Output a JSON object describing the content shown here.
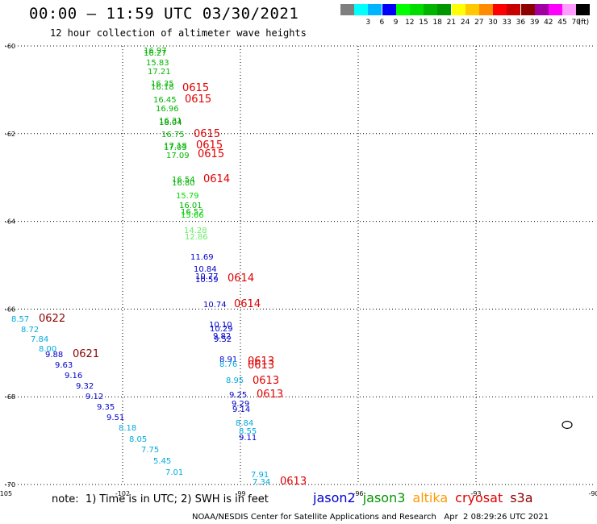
{
  "title": "00:00 – 11:59 UTC 03/30/2021",
  "subtitle": "12 hour collection of altimeter wave heights",
  "scale": {
    "unit": "(ft)",
    "bins": [
      {
        "label": "",
        "color": "#7f7f7f"
      },
      {
        "label": "3",
        "color": "#00ffff"
      },
      {
        "label": "6",
        "color": "#00b4ff"
      },
      {
        "label": "9",
        "color": "#0000ff"
      },
      {
        "label": "12",
        "color": "#00ff00"
      },
      {
        "label": "15",
        "color": "#00dc00"
      },
      {
        "label": "18",
        "color": "#00b400"
      },
      {
        "label": "21",
        "color": "#009600"
      },
      {
        "label": "24",
        "color": "#ffff00"
      },
      {
        "label": "27",
        "color": "#ffc800"
      },
      {
        "label": "30",
        "color": "#ff8c00"
      },
      {
        "label": "33",
        "color": "#ff0000"
      },
      {
        "label": "36",
        "color": "#c80000"
      },
      {
        "label": "39",
        "color": "#8c0000"
      },
      {
        "label": "42",
        "color": "#a000a0"
      },
      {
        "label": "45",
        "color": "#ff00ff"
      },
      {
        "label": "70",
        "color": "#ff9cff"
      },
      {
        "label": "",
        "color": "#000000"
      }
    ]
  },
  "axes": {
    "lat_labels": [
      "-60",
      "-62",
      "-64",
      "-66",
      "-68",
      "-70"
    ],
    "lon_labels": [
      "-105",
      "-102",
      "-99",
      "-96",
      "-93",
      "-90"
    ],
    "lat_values": [
      -60,
      -62,
      -64,
      -66,
      -68,
      -70
    ],
    "lon_values": [
      -105,
      -102,
      -99,
      -96,
      -93,
      -90
    ]
  },
  "swh_values": [
    {
      "text": "16.97",
      "color": "#00b400"
    },
    {
      "text": "16.27",
      "color": "#00b400"
    },
    {
      "text": "15.83",
      "color": "#00b400"
    },
    {
      "text": "17.21",
      "color": "#00b400"
    },
    {
      "text": "16.35",
      "color": "#00b400"
    },
    {
      "text": "16.18",
      "color": "#00b400"
    },
    {
      "text": "16.45",
      "color": "#00b400"
    },
    {
      "text": "16.96",
      "color": "#00b400"
    },
    {
      "text": "16.31",
      "color": "#00b400"
    },
    {
      "text": "18.04",
      "color": "#009600"
    },
    {
      "text": "16.75",
      "color": "#00b400"
    },
    {
      "text": "17.18",
      "color": "#00b400"
    },
    {
      "text": "17.03",
      "color": "#00b400"
    },
    {
      "text": "17.09",
      "color": "#00b400"
    },
    {
      "text": "16.54",
      "color": "#00b400"
    },
    {
      "text": "16.80",
      "color": "#00b400"
    },
    {
      "text": "15.79",
      "color": "#00dc00"
    },
    {
      "text": "16.01",
      "color": "#00b400"
    },
    {
      "text": "16.52",
      "color": "#00b400"
    },
    {
      "text": "15.66",
      "color": "#00dc00"
    },
    {
      "text": "14.28",
      "color": "#66ee66"
    },
    {
      "text": "12.86",
      "color": "#66ee66"
    },
    {
      "text": "11.69",
      "color": "#0000cc"
    },
    {
      "text": "10.84",
      "color": "#0000cc"
    },
    {
      "text": "10.77",
      "color": "#0000cc"
    },
    {
      "text": "10.59",
      "color": "#0000cc"
    },
    {
      "text": "10.74",
      "color": "#0000cc"
    },
    {
      "text": "10.10",
      "color": "#0000cc"
    },
    {
      "text": "10.29",
      "color": "#0000cc"
    },
    {
      "text": "9.82",
      "color": "#0000cc"
    },
    {
      "text": "9.52",
      "color": "#0000cc"
    },
    {
      "text": "8.91",
      "color": "#0000cc"
    },
    {
      "text": "8.76",
      "color": "#00aadd"
    },
    {
      "text": "8.95",
      "color": "#00aadd"
    },
    {
      "text": "9.25",
      "color": "#0000cc"
    },
    {
      "text": "9.29",
      "color": "#0000cc"
    },
    {
      "text": "9.14",
      "color": "#0000cc"
    },
    {
      "text": "8.84",
      "color": "#00aadd"
    },
    {
      "text": "8.55",
      "color": "#00aadd"
    },
    {
      "text": "9.11",
      "color": "#0000cc"
    },
    {
      "text": "7.91",
      "color": "#00aadd"
    },
    {
      "text": "7.34",
      "color": "#00aadd"
    },
    {
      "text": "8.57",
      "color": "#00aadd"
    },
    {
      "text": "8.72",
      "color": "#00aadd"
    },
    {
      "text": "7.84",
      "color": "#00aadd"
    },
    {
      "text": "8.00",
      "color": "#00aadd"
    },
    {
      "text": "9.88",
      "color": "#0000cc"
    },
    {
      "text": "9.63",
      "color": "#0000cc"
    },
    {
      "text": "9.16",
      "color": "#0000cc"
    },
    {
      "text": "9.32",
      "color": "#0000cc"
    },
    {
      "text": "9.12",
      "color": "#0000cc"
    },
    {
      "text": "9.35",
      "color": "#0000cc"
    },
    {
      "text": "9.51",
      "color": "#0000cc"
    },
    {
      "text": "8.18",
      "color": "#00aadd"
    },
    {
      "text": "8.05",
      "color": "#00aadd"
    },
    {
      "text": "7.75",
      "color": "#00aadd"
    },
    {
      "text": "5.45",
      "color": "#00aadd"
    },
    {
      "text": "7.01",
      "color": "#00aadd"
    }
  ],
  "time_labels": [
    {
      "text": "0615",
      "color": "#e00000"
    },
    {
      "text": "0615",
      "color": "#e00000"
    },
    {
      "text": "0615",
      "color": "#e00000"
    },
    {
      "text": "0615",
      "color": "#e00000"
    },
    {
      "text": "0615",
      "color": "#e00000"
    },
    {
      "text": "0614",
      "color": "#e00000"
    },
    {
      "text": "0614",
      "color": "#e00000"
    },
    {
      "text": "0614",
      "color": "#e00000"
    },
    {
      "text": "0613",
      "color": "#e00000"
    },
    {
      "text": "0613",
      "color": "#e00000"
    },
    {
      "text": "0613",
      "color": "#e00000"
    },
    {
      "text": "0613",
      "color": "#e00000"
    },
    {
      "text": "0613",
      "color": "#e00000"
    },
    {
      "text": "0622",
      "color": "#8c0000"
    },
    {
      "text": "0621",
      "color": "#8c0000"
    }
  ],
  "note": "note:  1) Time is in UTC; 2) SWH is in feet",
  "legend": [
    {
      "text": "jason2",
      "color": "#0000cc"
    },
    {
      "text": "jason3",
      "color": "#009600"
    },
    {
      "text": "altika",
      "color": "#ff9900"
    },
    {
      "text": "cryosat",
      "color": "#e00000"
    },
    {
      "text": "s3a",
      "color": "#8c0000"
    }
  ],
  "credit": "NOAA/NESDIS Center for Satellite Applications and Research   Apr  2 08:29:26 UTC 2021"
}
